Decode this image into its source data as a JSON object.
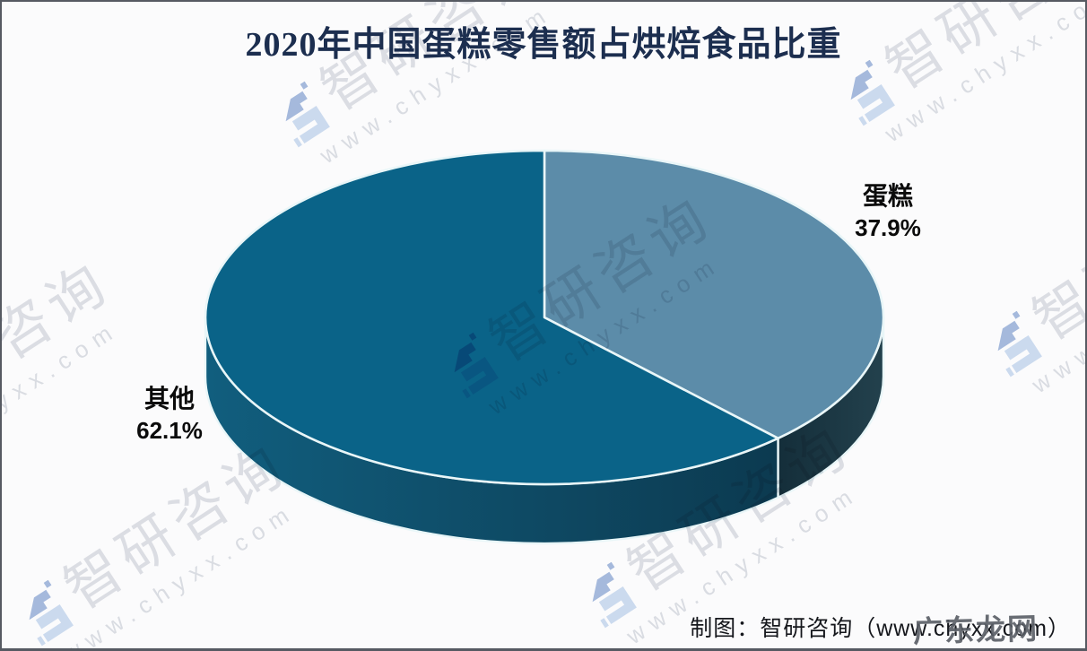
{
  "page": {
    "background": "#FBFBFC",
    "frame_border_color": "#565A62"
  },
  "chart_data": {
    "type": "pie",
    "style": "3d",
    "title": "2020年中国蛋糕零售额占烘焙食品比重",
    "title_color": "#1C2E4F",
    "categories": [
      "蛋糕",
      "其他"
    ],
    "values": [
      37.9,
      62.1
    ],
    "unit": "%",
    "start_angle_deg": 0,
    "direction": "clockwise",
    "legend_position": "none",
    "edge_line_color": "#E9F6F8",
    "slices": [
      {
        "label": "蛋糕",
        "value": 37.9,
        "pct_text": "37.9%",
        "top_color": "#5C8CA9",
        "side_color_left": "#142E3A",
        "side_color_right": "#23414D",
        "label_side": "right"
      },
      {
        "label": "其他",
        "value": 62.1,
        "pct_text": "62.1%",
        "top_color": "#0A6388",
        "side_color_left": "#115E7E",
        "side_color_right": "#0C3A50",
        "label_side": "left"
      }
    ]
  },
  "footer": {
    "credit": "制图：智研咨询（www.chyxx.com）"
  },
  "stamp": {
    "text": "广东龙网"
  },
  "watermark": {
    "brand": "智研咨询",
    "url": "www.chyxx.com",
    "logo": "zhiyan-consulting-logo",
    "logo_dark": "#4F78BE",
    "logo_light": "#9FBDE4",
    "text_color": "#C5C9D2"
  }
}
